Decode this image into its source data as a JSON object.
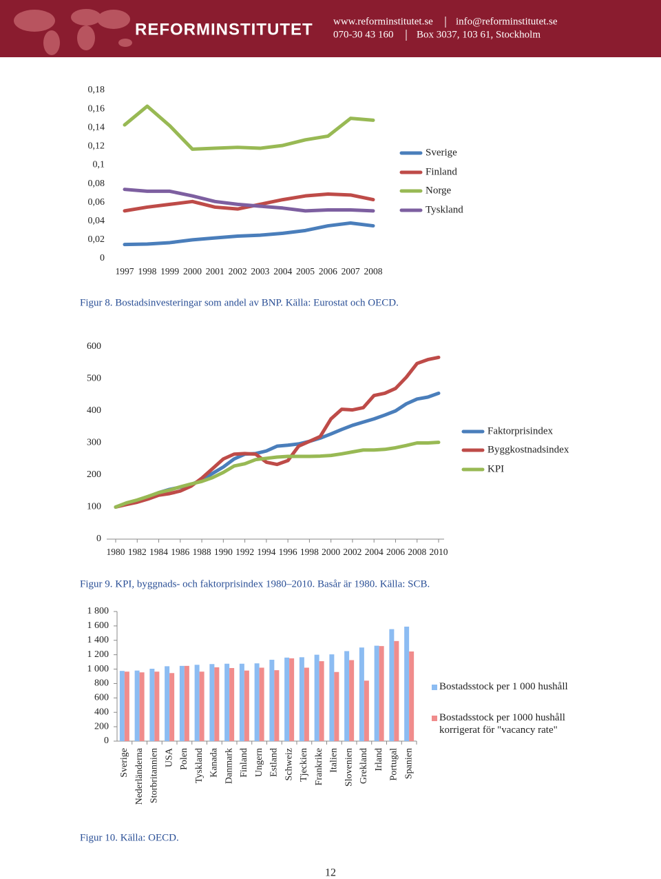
{
  "header": {
    "logo": "REFORMINSTITUTET",
    "website": "www.reforminstitutet.se",
    "email": "info@reforminstitutet.se",
    "phone": "070-30 43 160",
    "address": "Box 3037, 103 61, Stockholm"
  },
  "chart_data": [
    {
      "type": "line",
      "caption": "Figur 8. Bostadsinvesteringar som andel av BNP. Källa: Eurostat och OECD.",
      "categories": [
        "1997",
        "1998",
        "1999",
        "2000",
        "2001",
        "2002",
        "2003",
        "2004",
        "2005",
        "2006",
        "2007",
        "2008"
      ],
      "ylim": [
        0,
        0.18
      ],
      "yticks": [
        0,
        {
          "value": 0.02,
          "label": "0,02"
        },
        {
          "value": 0.04,
          "label": "0,04"
        },
        {
          "value": 0.06,
          "label": "0,06"
        },
        {
          "value": 0.08,
          "label": "0,08"
        },
        {
          "value": 0.1,
          "label": "0,1"
        },
        {
          "value": 0.12,
          "label": "0,12"
        },
        {
          "value": 0.14,
          "label": "0,14"
        },
        {
          "value": 0.16,
          "label": "0,16"
        },
        {
          "value": 0.18,
          "label": "0,18"
        }
      ],
      "grid": false,
      "legend": "right",
      "series": [
        {
          "name": "Sverige",
          "color": "#4a7ebb",
          "values": [
            0.015,
            0.0155,
            0.017,
            0.02,
            0.022,
            0.024,
            0.025,
            0.027,
            0.03,
            0.035,
            0.038,
            0.035
          ]
        },
        {
          "name": "Finland",
          "color": "#be4b48",
          "values": [
            0.051,
            0.055,
            0.058,
            0.061,
            0.055,
            0.053,
            0.058,
            0.063,
            0.067,
            0.069,
            0.068,
            0.063
          ]
        },
        {
          "name": "Norge",
          "color": "#98b954",
          "values": [
            0.143,
            0.163,
            0.142,
            0.117,
            0.118,
            0.119,
            0.118,
            0.121,
            0.127,
            0.131,
            0.15,
            0.148
          ]
        },
        {
          "name": "Tyskland",
          "color": "#7d5fa0",
          "values": [
            0.074,
            0.072,
            0.072,
            0.067,
            0.061,
            0.058,
            0.056,
            0.054,
            0.051,
            0.052,
            0.052,
            0.051
          ]
        }
      ]
    },
    {
      "type": "line",
      "caption": "Figur 9. KPI, byggnads- och faktorprisindex 1980–2010. Basår är 1980. Källa: SCB.",
      "x": [
        1980,
        1981,
        1982,
        1983,
        1984,
        1985,
        1986,
        1987,
        1988,
        1989,
        1990,
        1991,
        1992,
        1993,
        1994,
        1995,
        1996,
        1997,
        1998,
        1999,
        2000,
        2001,
        2002,
        2003,
        2004,
        2005,
        2006,
        2007,
        2008,
        2009,
        2010
      ],
      "xlim": [
        1980,
        2010
      ],
      "xticks": [
        1980,
        1982,
        1984,
        1986,
        1988,
        1990,
        1992,
        1994,
        1996,
        1998,
        2000,
        2002,
        2004,
        2006,
        2008,
        2010
      ],
      "ylim": [
        0,
        600
      ],
      "yticks": [
        0,
        100,
        200,
        300,
        400,
        500,
        600
      ],
      "grid": false,
      "legend": "right",
      "series": [
        {
          "name": "Faktorprisindex",
          "color": "#4a7ebb",
          "values": [
            100,
            110,
            120,
            132,
            145,
            155,
            162,
            170,
            185,
            205,
            225,
            250,
            265,
            267,
            275,
            290,
            293,
            297,
            305,
            315,
            328,
            342,
            355,
            365,
            375,
            387,
            400,
            422,
            437,
            443,
            455
          ]
        },
        {
          "name": "Byggkostnadsindex",
          "color": "#be4b48",
          "values": [
            100,
            108,
            115,
            125,
            137,
            142,
            150,
            165,
            190,
            220,
            250,
            265,
            267,
            265,
            240,
            233,
            245,
            290,
            305,
            320,
            375,
            405,
            403,
            410,
            448,
            455,
            470,
            505,
            548,
            560,
            567
          ]
        },
        {
          "name": "KPI",
          "color": "#98b954",
          "values": [
            100,
            113,
            122,
            133,
            145,
            153,
            163,
            172,
            180,
            192,
            208,
            228,
            235,
            248,
            252,
            256,
            258,
            258,
            258,
            259,
            261,
            266,
            272,
            278,
            278,
            280,
            285,
            292,
            300,
            300,
            302
          ]
        }
      ]
    },
    {
      "type": "bar",
      "caption": "Figur 10. Källa: OECD.",
      "categories": [
        "Sverige",
        "Nederländerna",
        "Storbritannien",
        "USA",
        "Polen",
        "Tyskland",
        "Kanada",
        "Danmark",
        "Finland",
        "Ungern",
        "Estland",
        "Schweiz",
        "Tjeckien",
        "Frankrike",
        "Italien",
        "Slovenien",
        "Grekland",
        "Irland",
        "Portugal",
        "Spanien"
      ],
      "ylim": [
        0,
        1800
      ],
      "yticks": [
        0,
        200,
        400,
        600,
        800,
        {
          "value": 1000,
          "label": "1 000"
        },
        {
          "value": 1200,
          "label": "1 200"
        },
        {
          "value": 1400,
          "label": "1 400"
        },
        {
          "value": 1600,
          "label": "1 600"
        },
        {
          "value": 1800,
          "label": "1 800"
        }
      ],
      "grid": false,
      "legend": "right",
      "series": [
        {
          "name": "Bostadsstock per 1 000 hushåll",
          "color": "#8cbcf2",
          "values": [
            975,
            980,
            1005,
            1040,
            1045,
            1060,
            1070,
            1075,
            1075,
            1080,
            1130,
            1160,
            1165,
            1200,
            1205,
            1250,
            1300,
            1325,
            1555,
            1590
          ]
        },
        {
          "name": "Bostadsstock per 1000 hushåll korrigerat för \"vacancy rate\"",
          "color": "#f08c8c",
          "values": [
            965,
            955,
            965,
            945,
            1045,
            965,
            1025,
            1015,
            980,
            1020,
            985,
            1150,
            1020,
            1110,
            960,
            1125,
            840,
            1320,
            1390,
            1245
          ]
        }
      ]
    }
  ],
  "page_number": "12"
}
